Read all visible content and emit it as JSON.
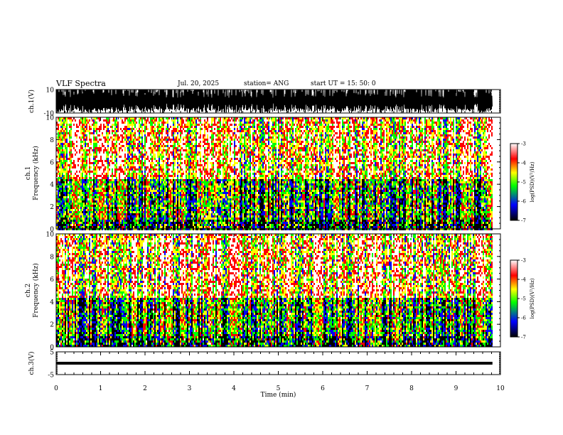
{
  "header": {
    "title": "VLF Spectra",
    "date": "Jul. 20, 2025",
    "station": "station= ANG",
    "start": "start UT =  15: 50: 0"
  },
  "chart_data": [
    {
      "type": "line",
      "panel": "ch1-waveform",
      "ylabel": "ch.1(V)",
      "ylim": [
        -10,
        10
      ],
      "y_ticks": [
        "10",
        "-10"
      ],
      "xlim": [
        0,
        10
      ]
    },
    {
      "type": "heatmap",
      "panel": "ch1-spectrogram",
      "ylabel": "ch.1\nFrequency (kHz)",
      "ylim": [
        0,
        10
      ],
      "y_ticks": [
        "0",
        "2",
        "4",
        "6",
        "8",
        "10"
      ],
      "xlim": [
        0,
        10
      ],
      "data_extent_x": [
        0,
        9.82
      ],
      "colorbar": {
        "label": "log(PSD)(V²/Hz)",
        "range": [
          -7,
          -3
        ],
        "ticks": [
          "-3",
          "-4",
          "-5",
          "-6",
          "-7"
        ],
        "colors": [
          "#000000",
          "#0000ff",
          "#00ff00",
          "#ffff00",
          "#ff0000",
          "#ffffff"
        ]
      }
    },
    {
      "type": "heatmap",
      "panel": "ch2-spectrogram",
      "ylabel": "ch.2\nFrequency (kHz)",
      "ylim": [
        0,
        10
      ],
      "y_ticks": [
        "0",
        "2",
        "4",
        "6",
        "8",
        "10"
      ],
      "xlim": [
        0,
        10
      ],
      "data_extent_x": [
        0,
        9.82
      ],
      "colorbar": {
        "label": "log(PSD)(V²/Hz)",
        "range": [
          -7,
          -3
        ],
        "ticks": [
          "-3",
          "-4",
          "-5",
          "-6",
          "-7"
        ],
        "colors": [
          "#000000",
          "#0000ff",
          "#00ff00",
          "#ffff00",
          "#ff0000",
          "#ffffff"
        ]
      }
    },
    {
      "type": "line",
      "panel": "ch3-waveform",
      "ylabel": "ch.3(V)",
      "ylim": [
        -5,
        5
      ],
      "y_ticks": [
        "5",
        "-5"
      ],
      "xlim": [
        0,
        10
      ],
      "series": [
        {
          "x": [
            0,
            9.82
          ],
          "y": [
            0,
            0
          ]
        }
      ]
    }
  ],
  "x_axis": {
    "label": "Time (min)",
    "ticks": [
      "0",
      "1",
      "2",
      "3",
      "4",
      "5",
      "6",
      "7",
      "8",
      "9",
      "10"
    ]
  }
}
